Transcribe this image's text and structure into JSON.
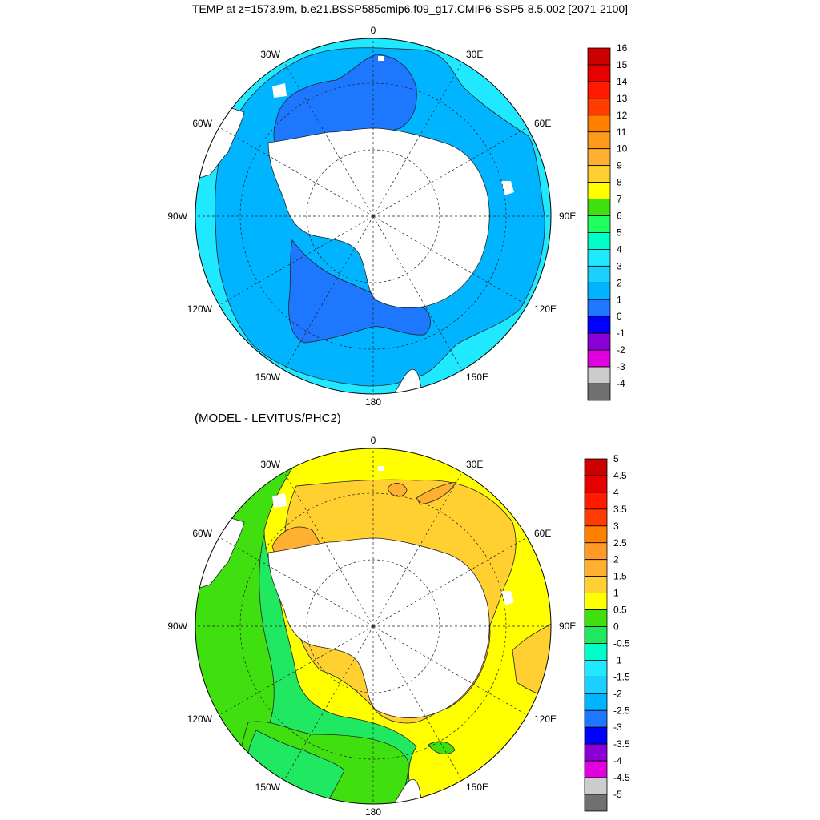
{
  "maps": [
    {
      "title": "TEMP at z=1573.9m, b.e21.BSSP585cmip6.f09_g17.CMIP6-SSP5-8.5.002 [2071-2100]",
      "lon_labels": [
        "0",
        "30E",
        "60E",
        "90E",
        "120E",
        "150E",
        "180",
        "150W",
        "120W",
        "90W",
        "60W",
        "30W"
      ],
      "colorbar": {
        "labels": [
          "16",
          "15",
          "14",
          "13",
          "12",
          "11",
          "10",
          "9",
          "8",
          "7",
          "6",
          "5",
          "4",
          "3",
          "2",
          "1",
          "0",
          "-1",
          "-2",
          "-3",
          "-4"
        ],
        "colors": [
          "#cc0000",
          "#e60000",
          "#ff1a00",
          "#ff3c00",
          "#ff8000",
          "#ff9a1a",
          "#ffb030",
          "#ffd030",
          "#ffff00",
          "#40e010",
          "#20ff60",
          "#00ffc8",
          "#20e8ff",
          "#1ad0ff",
          "#00b4ff",
          "#1e78ff",
          "#0000ff",
          "#8c00d8",
          "#e000e0",
          "#cccccc",
          "#707070"
        ]
      }
    },
    {
      "title": "(MODEL - LEVITUS/PHC2)",
      "lon_labels": [
        "0",
        "30E",
        "60E",
        "90E",
        "120E",
        "150E",
        "180",
        "150W",
        "120W",
        "90W",
        "60W",
        "30W"
      ],
      "colorbar": {
        "labels": [
          "5",
          "4.5",
          "4",
          "3.5",
          "3",
          "2.5",
          "2",
          "1.5",
          "1",
          "0.5",
          "0",
          "-0.5",
          "-1",
          "-1.5",
          "-2",
          "-2.5",
          "-3",
          "-3.5",
          "-4",
          "-4.5",
          "-5"
        ],
        "colors": [
          "#cc0000",
          "#e60000",
          "#ff1a00",
          "#ff3c00",
          "#ff8000",
          "#ff9a28",
          "#ffb030",
          "#ffd030",
          "#ffff00",
          "#40e010",
          "#20e860",
          "#00ffc8",
          "#20e8ff",
          "#1ad0ff",
          "#00b4ff",
          "#1e78ff",
          "#0000ff",
          "#8c00d8",
          "#e000e0",
          "#cccccc",
          "#707070"
        ]
      }
    }
  ]
}
